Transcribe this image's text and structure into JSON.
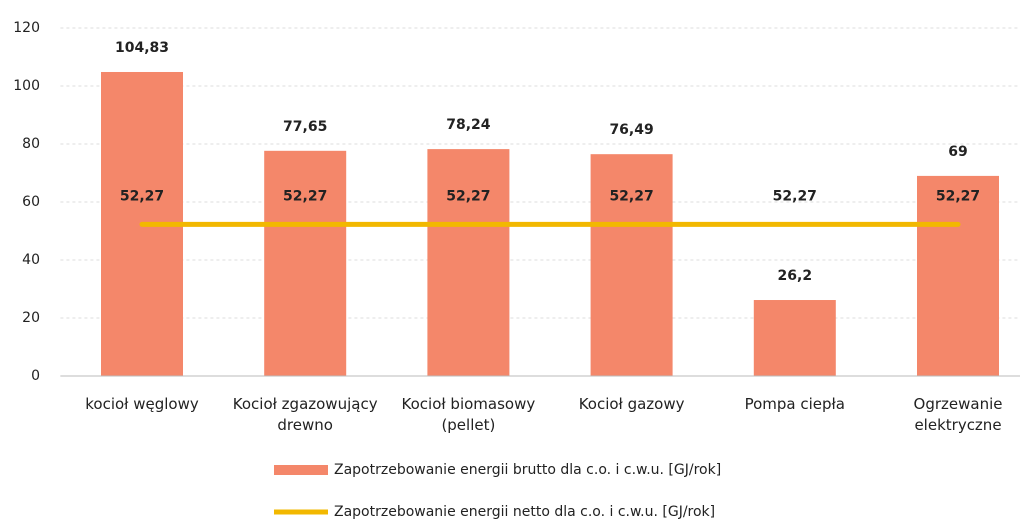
{
  "chart_data": {
    "type": "bar",
    "categories": [
      "kocioł węglowy",
      "Kocioł zgazowujący drewno",
      "Kocioł biomasowy (pellet)",
      "Kocioł gazowy",
      "Pompa ciepła",
      "Ogrzewanie elektryczne"
    ],
    "series": [
      {
        "name": "Zapotrzebowanie energii brutto dla c.o. i c.w.u. [GJ/rok]",
        "type": "bar",
        "color": "#f4876a",
        "values": [
          104.83,
          77.65,
          78.24,
          76.49,
          26.2,
          69
        ],
        "value_labels": [
          "104,83",
          "77,65",
          "78,24",
          "76,49",
          "26,2",
          "69"
        ]
      },
      {
        "name": "Zapotrzebowanie energii netto dla c.o. i c.w.u. [GJ/rok]",
        "type": "line",
        "color": "#f2b800",
        "values": [
          52.27,
          52.27,
          52.27,
          52.27,
          52.27,
          52.27
        ],
        "value_labels": [
          "52,27",
          "52,27",
          "52,27",
          "52,27",
          "52,27",
          "52,27"
        ]
      }
    ],
    "ylim": [
      0,
      120
    ],
    "yticks": [
      0,
      20,
      40,
      60,
      80,
      100,
      120
    ],
    "grid": true,
    "legend": "bottom"
  }
}
